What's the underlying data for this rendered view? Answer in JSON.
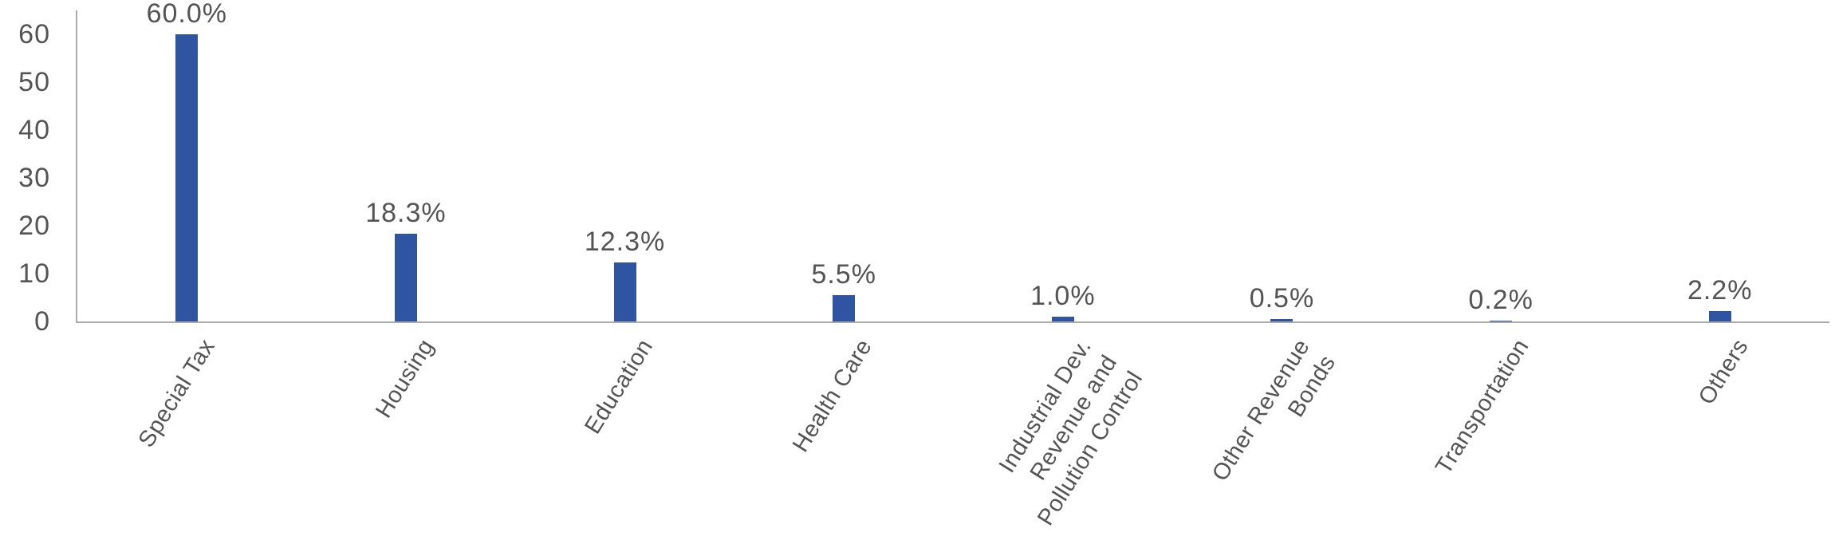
{
  "chart_data": {
    "type": "bar",
    "title": "",
    "xlabel": "",
    "ylabel": "",
    "categories": [
      "Special Tax",
      "Housing",
      "Education",
      "Health Care",
      "Industrial Dev.\nRevenue and\nPollution Control",
      "Other Revenue\nBonds",
      "Transportation",
      "Others"
    ],
    "values": [
      60.0,
      18.3,
      12.3,
      5.5,
      1.0,
      0.5,
      0.2,
      2.2
    ],
    "data_labels": [
      "60.0%",
      "18.3%",
      "12.3%",
      "5.5%",
      "1.0%",
      "0.5%",
      "0.2%",
      "2.2%"
    ],
    "yticks": [
      0,
      10,
      20,
      30,
      40,
      50,
      60
    ],
    "ytick_labels": [
      "0",
      "10",
      "20",
      "30",
      "40",
      "50",
      "60"
    ],
    "ylim": [
      0,
      65
    ],
    "grid": false,
    "legend": "none",
    "x_label_rotation_deg": -58,
    "colors": {
      "bar": "#2F55A2",
      "axis": "#ABABAB",
      "text": "#545454"
    }
  }
}
